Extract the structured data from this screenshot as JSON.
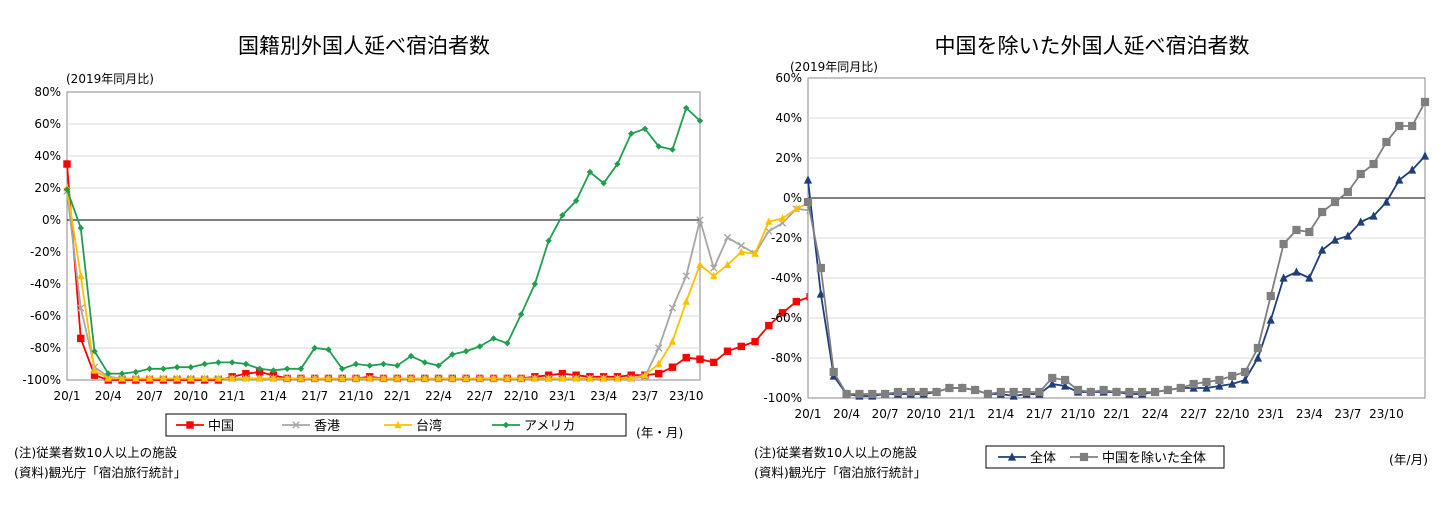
{
  "chart_data": [
    {
      "type": "line",
      "title": "国籍別外国人延べ宿泊者数",
      "subtitle": "(2019年同月比)",
      "xlabel": "(年・月)",
      "ylabel": "",
      "ylim": [
        -100,
        80
      ],
      "yticks": [
        80,
        60,
        40,
        20,
        0,
        -20,
        -40,
        -60,
        -80,
        -100
      ],
      "ytick_labels": [
        "80%",
        "60%",
        "40%",
        "20%",
        "0%",
        "-20%",
        "-40%",
        "-60%",
        "-80%",
        "-100%"
      ],
      "x_tick_labels": [
        "20/1",
        "20/4",
        "20/7",
        "20/10",
        "21/1",
        "21/4",
        "21/7",
        "21/10",
        "22/1",
        "22/4",
        "22/7",
        "22/10",
        "23/1",
        "23/4",
        "23/7",
        "23/10"
      ],
      "legend_position": "bottom",
      "grid": true,
      "series": [
        {
          "name": "中国",
          "color": "#ff0000",
          "marker": "square",
          "values": [
            35,
            -74,
            -97,
            -100,
            -100,
            -100,
            -100,
            -100,
            -100,
            -100,
            -100,
            -100,
            -98,
            -96,
            -95,
            -97,
            -99,
            -99,
            -99,
            -99,
            -99,
            -99,
            -98,
            -99,
            -99,
            -99,
            -99,
            -99,
            -99,
            -99,
            -99,
            -99,
            -99,
            -99,
            -98,
            -97,
            -96,
            -97,
            -98,
            -98,
            -98,
            -97,
            -97,
            -96,
            -92,
            -86,
            -87,
            -89,
            -82,
            -79,
            -76,
            -66,
            -58,
            -51,
            -48,
            -49,
            -49
          ]
        },
        {
          "name": "香港",
          "color": "#a6a6a6",
          "marker": "x",
          "values": [
            18,
            -55,
            -92,
            -98,
            -99,
            -99,
            -99,
            -99,
            -99,
            -99,
            -99,
            -99,
            -99,
            -99,
            -99,
            -99,
            -99,
            -99,
            -99,
            -99,
            -99,
            -99,
            -99,
            -99,
            -99,
            -99,
            -99,
            -99,
            -99,
            -99,
            -99,
            -99,
            -99,
            -99,
            -99,
            -99,
            -99,
            -99,
            -99,
            -99,
            -99,
            -99,
            -98,
            -80,
            -55,
            -35,
            0,
            -30,
            -11,
            -16,
            -21,
            -7,
            -2,
            7,
            6,
            2,
            10
          ]
        },
        {
          "name": "台湾",
          "color": "#ffc000",
          "marker": "triangle",
          "values": [
            20,
            -35,
            -94,
            -99,
            -99,
            -99,
            -99,
            -99,
            -99,
            -99,
            -99,
            -99,
            -99,
            -99,
            -99,
            -99,
            -99,
            -99,
            -99,
            -99,
            -99,
            -99,
            -99,
            -99,
            -99,
            -99,
            -99,
            -99,
            -99,
            -99,
            -99,
            -99,
            -99,
            -99,
            -99,
            -99,
            -99,
            -99,
            -99,
            -99,
            -99,
            -99,
            -97,
            -90,
            -76,
            -51,
            -28,
            -35,
            -28,
            -20,
            -21,
            -1,
            1,
            7,
            11,
            15,
            24
          ]
        },
        {
          "name": "アメリカ",
          "color": "#1f9e50",
          "marker": "diamond",
          "values": [
            19,
            -5,
            -82,
            -96,
            -96,
            -95,
            -93,
            -93,
            -92,
            -92,
            -90,
            -89,
            -89,
            -90,
            -93,
            -94,
            -93,
            -93,
            -80,
            -81,
            -93,
            -90,
            -91,
            -90,
            -91,
            -85,
            -89,
            -91,
            -84,
            -82,
            -79,
            -74,
            -77,
            -59,
            -40,
            -13,
            3,
            12,
            30,
            23,
            35,
            54,
            57,
            46,
            44,
            70,
            62
          ]
        }
      ]
    },
    {
      "type": "line",
      "title": "中国を除いた外国人延べ宿泊者数",
      "subtitle": "(2019年同月比)",
      "xlabel": "(年/月)",
      "ylabel": "",
      "ylim": [
        -100,
        60
      ],
      "yticks": [
        60,
        40,
        20,
        0,
        -20,
        -40,
        -60,
        -80,
        -100
      ],
      "ytick_labels": [
        "60%",
        "40%",
        "20%",
        "0%",
        "-20%",
        "-40%",
        "-60%",
        "-80%",
        "-100%"
      ],
      "x_tick_labels": [
        "20/1",
        "20/4",
        "20/7",
        "20/10",
        "21/1",
        "21/4",
        "21/7",
        "21/10",
        "22/1",
        "22/4",
        "22/7",
        "22/10",
        "23/1",
        "23/4",
        "23/7",
        "23/10"
      ],
      "legend_position": "bottom",
      "grid": true,
      "series": [
        {
          "name": "全体",
          "color": "#1f3f7a",
          "marker": "triangle",
          "values": [
            9,
            -48,
            -89,
            -98,
            -99,
            -99,
            -98,
            -98,
            -98,
            -98,
            -97,
            -95,
            -95,
            -96,
            -98,
            -98,
            -99,
            -98,
            -98,
            -93,
            -94,
            -97,
            -97,
            -97,
            -97,
            -98,
            -98,
            -97,
            -96,
            -95,
            -95,
            -95,
            -94,
            -93,
            -91,
            -80,
            -61,
            -40,
            -37,
            -40,
            -26,
            -21,
            -19,
            -12,
            -9,
            -2,
            9,
            14,
            21
          ]
        },
        {
          "name": "中国を除いた全体",
          "color": "#7f7f7f",
          "marker": "square",
          "values": [
            -2,
            -35,
            -87,
            -98,
            -98,
            -98,
            -98,
            -97,
            -97,
            -97,
            -97,
            -95,
            -95,
            -96,
            -98,
            -97,
            -97,
            -97,
            -97,
            -90,
            -91,
            -96,
            -97,
            -96,
            -97,
            -97,
            -97,
            -97,
            -96,
            -95,
            -93,
            -92,
            -91,
            -89,
            -87,
            -75,
            -49,
            -23,
            -16,
            -17,
            -7,
            -2,
            3,
            12,
            17,
            28,
            36,
            36,
            48
          ]
        }
      ]
    }
  ],
  "notes": {
    "note1": "(注)従業者数10人以上の施設",
    "note2": "(資料)観光庁「宿泊旅行統計」"
  }
}
